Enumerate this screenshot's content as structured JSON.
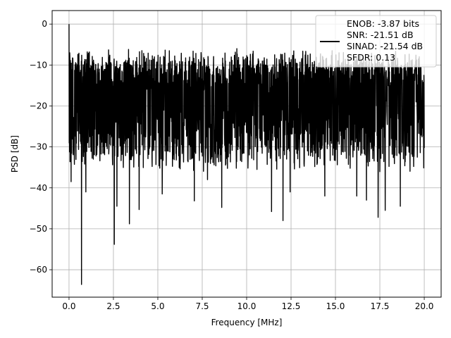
{
  "chart_data": {
    "type": "line",
    "title": "",
    "xlabel": "Frequency [MHz]",
    "ylabel": "PSD [dB]",
    "xlim": [
      -0.95,
      20.95
    ],
    "ylim": [
      -66.7,
      3.3
    ],
    "xticks": [
      0.0,
      2.5,
      5.0,
      7.5,
      10.0,
      12.5,
      15.0,
      17.5,
      20.0
    ],
    "xtick_labels": [
      "0.0",
      "2.5",
      "5.0",
      "7.5",
      "10.0",
      "12.5",
      "15.0",
      "17.5",
      "20.0"
    ],
    "yticks": [
      0,
      -10,
      -20,
      -30,
      -40,
      -50,
      -60
    ],
    "ytick_labels": [
      "0",
      "−10",
      "−20",
      "−30",
      "−40",
      "−50",
      "−60"
    ],
    "grid": true,
    "legend_position": "top-right",
    "series_color": "#000000",
    "legend_lines": [
      "ENOB: -3.87 bits",
      "SNR: -21.51 dB",
      "SINAD: -21.54 dB",
      "SFDR: 0.13"
    ],
    "series": [
      {
        "x_range": [
          0,
          20
        ],
        "points": 2048,
        "baseline": -20,
        "envelope_top": -8,
        "envelope_bottom": -33,
        "peaks": [
          {
            "x": 0.0,
            "y": 0.0
          },
          {
            "x": 0.04,
            "y": -7
          },
          {
            "x": 0.12,
            "y": -38.5
          },
          {
            "x": 0.7,
            "y": -63.6
          },
          {
            "x": 0.95,
            "y": -41
          },
          {
            "x": 2.55,
            "y": -53.8
          },
          {
            "x": 2.7,
            "y": -44.5
          },
          {
            "x": 3.4,
            "y": -48.8
          },
          {
            "x": 3.35,
            "y": -6.2
          },
          {
            "x": 3.95,
            "y": -45.3
          },
          {
            "x": 5.25,
            "y": -41.5
          },
          {
            "x": 7.05,
            "y": -43.2
          },
          {
            "x": 7.8,
            "y": -38
          },
          {
            "x": 8.6,
            "y": -44.8
          },
          {
            "x": 9.45,
            "y": -6
          },
          {
            "x": 11.4,
            "y": -45.8
          },
          {
            "x": 12.05,
            "y": -48
          },
          {
            "x": 12.45,
            "y": -41
          },
          {
            "x": 14.4,
            "y": -42
          },
          {
            "x": 16.2,
            "y": -42
          },
          {
            "x": 16.75,
            "y": -43
          },
          {
            "x": 17.4,
            "y": -47.2
          },
          {
            "x": 17.8,
            "y": -45.5
          },
          {
            "x": 18.65,
            "y": -44.5
          }
        ]
      }
    ]
  }
}
